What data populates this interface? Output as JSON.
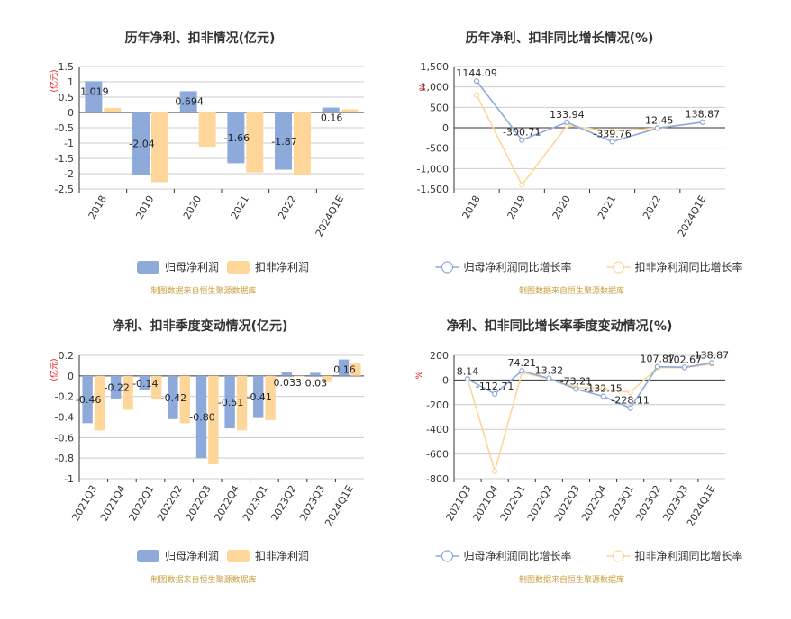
{
  "colors": {
    "series_a": "#8eaadb",
    "series_b": "#ffd699",
    "unit_red": "#e00000",
    "source_gold": "#c8a040"
  },
  "source_note": "制图数据来自恒生聚源数据库",
  "chart_data": [
    {
      "type": "bar",
      "title": "历年净利、扣非情况(亿元)",
      "unit": "(亿元)",
      "categories": [
        "2018",
        "2019",
        "2020",
        "2021",
        "2022",
        "2024Q1E"
      ],
      "yticks": [
        "1.5",
        "1",
        "0.5",
        "0",
        "-0.5",
        "-1",
        "-1.5",
        "-2",
        "-2.5"
      ],
      "ylim": [
        -2.5,
        1.5
      ],
      "series": [
        {
          "name": "归母净利润",
          "values": [
            1.019,
            -2.04,
            0.694,
            -1.66,
            -1.87,
            0.16
          ],
          "labels": [
            "1.019",
            "-2.04",
            "0.694",
            "-1.66",
            "-1.87",
            "0.16"
          ]
        },
        {
          "name": "扣非净利润",
          "values": [
            0.15,
            -2.28,
            -1.12,
            -1.96,
            -2.06,
            0.1
          ]
        }
      ]
    },
    {
      "type": "line",
      "title": "历年净利、扣非同比增长情况(%)",
      "unit": "%",
      "categories": [
        "2018",
        "2019",
        "2020",
        "2021",
        "2022",
        "2024Q1E"
      ],
      "yticks": [
        "1,500",
        "1,000",
        "500",
        "0",
        "-500",
        "-1,000",
        "-1,500"
      ],
      "ylim": [
        -1500,
        1500
      ],
      "series": [
        {
          "name": "归母净利润同比增长率",
          "values": [
            1144.09,
            -300.71,
            133.94,
            -339.76,
            -12.45,
            138.87
          ],
          "labels": [
            "1144.09",
            "-300.71",
            "133.94",
            "-339.76",
            "-12.45",
            "138.87"
          ]
        },
        {
          "name": "扣非净利润同比增长率",
          "values": [
            800,
            -1400,
            50,
            -80,
            -5,
            130
          ]
        }
      ]
    },
    {
      "type": "bar",
      "title": "净利、扣非季度变动情况(亿元)",
      "unit": "(亿元)",
      "categories": [
        "2021Q3",
        "2021Q4",
        "2022Q1",
        "2022Q2",
        "2022Q3",
        "2022Q4",
        "2023Q1",
        "2023Q2",
        "2023Q3",
        "2024Q1E"
      ],
      "yticks": [
        "0.2",
        "0",
        "-0.2",
        "-0.4",
        "-0.6",
        "-0.8",
        "-1"
      ],
      "ylim": [
        -1,
        0.2
      ],
      "series": [
        {
          "name": "归母净利润",
          "values": [
            -0.46,
            -0.22,
            -0.14,
            -0.42,
            -0.8,
            -0.51,
            -0.41,
            0.033,
            0.03,
            0.16
          ],
          "labels": [
            "-0.46",
            "-0.22",
            "-0.14",
            "-0.42",
            "-0.80",
            "-0.51",
            "-0.41",
            "0.033",
            "0.03",
            "0.16"
          ]
        },
        {
          "name": "扣非净利润",
          "values": [
            -0.53,
            -0.33,
            -0.23,
            -0.46,
            -0.86,
            -0.53,
            -0.43,
            0.0,
            -0.06,
            0.12
          ]
        }
      ]
    },
    {
      "type": "line",
      "title": "净利、扣非同比增长率季度变动情况(%)",
      "unit": "%",
      "categories": [
        "2021Q3",
        "2021Q4",
        "2022Q1",
        "2022Q2",
        "2022Q3",
        "2022Q4",
        "2023Q1",
        "2023Q2",
        "2023Q3",
        "2024Q1E"
      ],
      "yticks": [
        "200",
        "0",
        "-200",
        "-400",
        "-600",
        "-800"
      ],
      "ylim": [
        -800,
        200
      ],
      "series": [
        {
          "name": "归母净利润同比增长率",
          "values": [
            8.14,
            -112.71,
            74.21,
            13.32,
            -73.21,
            -132.15,
            -228.11,
            107.87,
            102.67,
            138.87
          ],
          "labels": [
            "8.14",
            "-112.71",
            "74.21",
            "13.32",
            "-73.21",
            "-132.15",
            "-228.11",
            "107.87",
            "102.67",
            "138.87"
          ]
        },
        {
          "name": "扣非净利润同比增长率",
          "values": [
            10,
            -740,
            60,
            10,
            -60,
            -70,
            -100,
            100,
            100,
            130
          ]
        }
      ]
    }
  ]
}
